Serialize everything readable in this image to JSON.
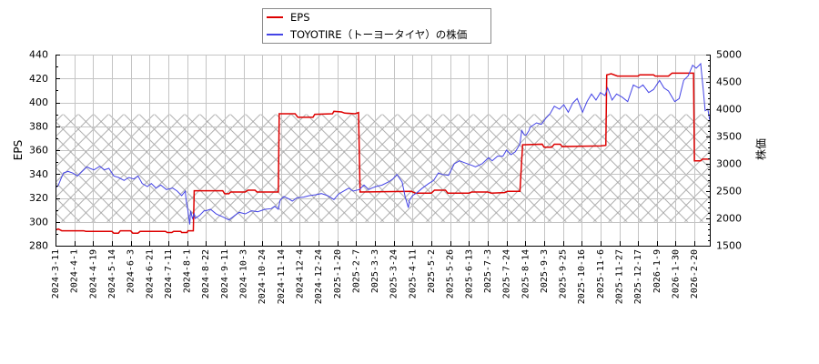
{
  "chart_data": {
    "type": "line",
    "title": "",
    "xlabel": "",
    "ylabel": "EPS",
    "y2label": "株価",
    "ylim": [
      280,
      440
    ],
    "y2lim": [
      1500,
      5000
    ],
    "y_ticks": [
      280,
      300,
      320,
      340,
      360,
      380,
      400,
      420,
      440
    ],
    "y_minor_step": 10,
    "y2_ticks": [
      1500,
      2000,
      2500,
      3000,
      3500,
      4000,
      4500,
      5000
    ],
    "y2_minor_step": 100,
    "x_ticks": [
      "2024-3-11",
      "2024-4-1",
      "2024-4-19",
      "2024-5-14",
      "2024-6-3",
      "2024-6-21",
      "2024-7-11",
      "2024-8-1",
      "2024-8-22",
      "2024-9-11",
      "2024-10-3",
      "2024-10-24",
      "2024-11-14",
      "2024-12-4",
      "2024-12-24",
      "2025-1-20",
      "2025-2-7",
      "2025-3-3",
      "2025-3-24",
      "2025-4-11",
      "2025-5-2",
      "2025-5-26",
      "2025-6-13",
      "2025-7-3",
      "2025-7-24",
      "2025-8-14",
      "2025-9-3",
      "2025-9-25",
      "2025-10-16",
      "2025-11-6",
      "2025-11-27",
      "2025-12-17",
      "2026-1-9",
      "2026-1-30",
      "2026-2-20"
    ],
    "grid": true,
    "legend_position": "top center, above plot",
    "shaded_band": {
      "axis": "left",
      "from": 300,
      "to": 390,
      "hatch": "x"
    },
    "series": [
      {
        "name": "EPS",
        "axis": "left",
        "color": "#dd0000",
        "points": [
          [
            "2024-3-11",
            293
          ],
          [
            "2024-3-14",
            294
          ],
          [
            "2024-3-18",
            292.5
          ],
          [
            "2024-4-10",
            292.5
          ],
          [
            "2024-4-12",
            292
          ],
          [
            "2024-5-14",
            292
          ],
          [
            "2024-5-16",
            290.5
          ],
          [
            "2024-5-21",
            290.5
          ],
          [
            "2024-5-23",
            292.5
          ],
          [
            "2024-6-3",
            292.5
          ],
          [
            "2024-6-5",
            290.5
          ],
          [
            "2024-6-10",
            290.5
          ],
          [
            "2024-6-12",
            292
          ],
          [
            "2024-7-8",
            292
          ],
          [
            "2024-7-10",
            291
          ],
          [
            "2024-7-15",
            291
          ],
          [
            "2024-7-17",
            292
          ],
          [
            "2024-7-25",
            292
          ],
          [
            "2024-7-26",
            291
          ],
          [
            "2024-8-1",
            291
          ],
          [
            "2024-8-2",
            292.5
          ],
          [
            "2024-8-8",
            292.5
          ],
          [
            "2024-8-9",
            326
          ],
          [
            "2024-9-9",
            326
          ],
          [
            "2024-9-11",
            323.5
          ],
          [
            "2024-9-16",
            323.5
          ],
          [
            "2024-9-18",
            325
          ],
          [
            "2024-10-5",
            325
          ],
          [
            "2024-10-8",
            326.5
          ],
          [
            "2024-10-16",
            326.5
          ],
          [
            "2024-10-18",
            325
          ],
          [
            "2024-11-11",
            325
          ],
          [
            "2024-11-12",
            390.5
          ],
          [
            "2024-11-29",
            390.5
          ],
          [
            "2024-12-2",
            387.5
          ],
          [
            "2024-12-18",
            387.5
          ],
          [
            "2024-12-20",
            390
          ],
          [
            "2025-1-13",
            390.5
          ],
          [
            "2025-1-15",
            392.5
          ],
          [
            "2025-1-24",
            392
          ],
          [
            "2025-1-27",
            391
          ],
          [
            "2025-2-6",
            390.5
          ],
          [
            "2025-2-10",
            391.5
          ],
          [
            "2025-2-12",
            325
          ],
          [
            "2025-4-10",
            325.5
          ],
          [
            "2025-4-14",
            324
          ],
          [
            "2025-5-2",
            324
          ],
          [
            "2025-5-6",
            326.5
          ],
          [
            "2025-5-20",
            326.5
          ],
          [
            "2025-5-23",
            324
          ],
          [
            "2025-6-13",
            324
          ],
          [
            "2025-6-16",
            325
          ],
          [
            "2025-7-3",
            325
          ],
          [
            "2025-7-7",
            324
          ],
          [
            "2025-7-22",
            324.5
          ],
          [
            "2025-7-25",
            325.5
          ],
          [
            "2025-8-8",
            325.5
          ],
          [
            "2025-8-11",
            364.5
          ],
          [
            "2025-9-1",
            365
          ],
          [
            "2025-9-3",
            362.5
          ],
          [
            "2025-9-12",
            362.5
          ],
          [
            "2025-9-15",
            365
          ],
          [
            "2025-9-22",
            365
          ],
          [
            "2025-9-24",
            363
          ],
          [
            "2025-11-6",
            363.5
          ],
          [
            "2025-11-12",
            364
          ],
          [
            "2025-11-13",
            423
          ],
          [
            "2025-11-18",
            424
          ],
          [
            "2025-11-25",
            422
          ],
          [
            "2025-12-17",
            422
          ],
          [
            "2025-12-19",
            423
          ],
          [
            "2026-1-5",
            423
          ],
          [
            "2026-1-7",
            422
          ],
          [
            "2026-1-22",
            422
          ],
          [
            "2026-1-26",
            424.5
          ],
          [
            "2026-2-19",
            424.5
          ],
          [
            "2026-2-20",
            351
          ],
          [
            "2026-2-27",
            351
          ],
          [
            "2026-3-1",
            352.5
          ],
          [
            "2026-3-9",
            352.5
          ]
        ]
      },
      {
        "name": "TOYOTIRE（トーヨータイヤ）の株価",
        "axis": "right",
        "color": "#4444e6",
        "points": [
          [
            "2024-3-11",
            2560
          ],
          [
            "2024-3-14",
            2600
          ],
          [
            "2024-3-17",
            2722
          ],
          [
            "2024-3-20",
            2833
          ],
          [
            "2024-3-25",
            2861
          ],
          [
            "2024-3-30",
            2833
          ],
          [
            "2024-4-4",
            2778
          ],
          [
            "2024-4-7",
            2833
          ],
          [
            "2024-4-13",
            2944
          ],
          [
            "2024-4-16",
            2917
          ],
          [
            "2024-4-20",
            2889
          ],
          [
            "2024-4-28",
            2955
          ],
          [
            "2024-5-4",
            2889
          ],
          [
            "2024-5-10",
            2917
          ],
          [
            "2024-5-16",
            2778
          ],
          [
            "2024-5-21",
            2750
          ],
          [
            "2024-5-27",
            2695
          ],
          [
            "2024-6-1",
            2750
          ],
          [
            "2024-6-6",
            2722
          ],
          [
            "2024-6-10",
            2778
          ],
          [
            "2024-6-14",
            2639
          ],
          [
            "2024-6-19",
            2583
          ],
          [
            "2024-6-23",
            2639
          ],
          [
            "2024-6-28",
            2555
          ],
          [
            "2024-7-3",
            2611
          ],
          [
            "2024-7-9",
            2528
          ],
          [
            "2024-7-16",
            2555
          ],
          [
            "2024-7-21",
            2500
          ],
          [
            "2024-7-26",
            2417
          ],
          [
            "2024-7-30",
            2500
          ],
          [
            "2024-7-31",
            2333
          ],
          [
            "2024-8-2",
            2139
          ],
          [
            "2024-8-4",
            1889
          ],
          [
            "2024-8-5",
            2139
          ],
          [
            "2024-8-7",
            2000
          ],
          [
            "2024-8-9",
            2083
          ],
          [
            "2024-8-10",
            2000
          ],
          [
            "2024-8-15",
            2055
          ],
          [
            "2024-8-20",
            2139
          ],
          [
            "2024-8-22",
            2139
          ],
          [
            "2024-8-27",
            2167
          ],
          [
            "2024-9-2",
            2083
          ],
          [
            "2024-9-9",
            2028
          ],
          [
            "2024-9-16",
            1972
          ],
          [
            "2024-9-23",
            2055
          ],
          [
            "2024-9-28",
            2111
          ],
          [
            "2024-10-5",
            2083
          ],
          [
            "2024-10-12",
            2139
          ],
          [
            "2024-10-19",
            2122
          ],
          [
            "2024-10-27",
            2167
          ],
          [
            "2024-11-3",
            2178
          ],
          [
            "2024-11-7",
            2222
          ],
          [
            "2024-11-11",
            2167
          ],
          [
            "2024-11-13",
            2333
          ],
          [
            "2024-11-17",
            2400
          ],
          [
            "2024-11-22",
            2361
          ],
          [
            "2024-11-26",
            2317
          ],
          [
            "2024-12-1",
            2378
          ],
          [
            "2024-12-8",
            2389
          ],
          [
            "2024-12-14",
            2417
          ],
          [
            "2024-12-21",
            2433
          ],
          [
            "2024-12-28",
            2455
          ],
          [
            "2025-1-6",
            2417
          ],
          [
            "2025-1-15",
            2345
          ],
          [
            "2025-1-21",
            2444
          ],
          [
            "2025-1-27",
            2511
          ],
          [
            "2025-1-31",
            2555
          ],
          [
            "2025-2-4",
            2500
          ],
          [
            "2025-2-11",
            2528
          ],
          [
            "2025-2-17",
            2611
          ],
          [
            "2025-2-23",
            2528
          ],
          [
            "2025-2-27",
            2555
          ],
          [
            "2025-3-4",
            2583
          ],
          [
            "2025-3-11",
            2611
          ],
          [
            "2025-3-18",
            2667
          ],
          [
            "2025-3-23",
            2722
          ],
          [
            "2025-3-27",
            2805
          ],
          [
            "2025-4-1",
            2667
          ],
          [
            "2025-4-4",
            2389
          ],
          [
            "2025-4-7",
            2195
          ],
          [
            "2025-4-8",
            2333
          ],
          [
            "2025-4-11",
            2417
          ],
          [
            "2025-4-16",
            2472
          ],
          [
            "2025-4-22",
            2555
          ],
          [
            "2025-4-29",
            2639
          ],
          [
            "2025-5-5",
            2695
          ],
          [
            "2025-5-11",
            2833
          ],
          [
            "2025-5-16",
            2805
          ],
          [
            "2025-5-24",
            2789
          ],
          [
            "2025-5-30",
            3000
          ],
          [
            "2025-6-4",
            3055
          ],
          [
            "2025-6-10",
            3011
          ],
          [
            "2025-6-16",
            2972
          ],
          [
            "2025-6-20",
            2944
          ],
          [
            "2025-6-27",
            3000
          ],
          [
            "2025-7-4",
            3111
          ],
          [
            "2025-7-8",
            3055
          ],
          [
            "2025-7-14",
            3139
          ],
          [
            "2025-7-20",
            3139
          ],
          [
            "2025-7-24",
            3250
          ],
          [
            "2025-7-29",
            3167
          ],
          [
            "2025-8-3",
            3222
          ],
          [
            "2025-8-8",
            3361
          ],
          [
            "2025-8-10",
            3611
          ],
          [
            "2025-8-13",
            3528
          ],
          [
            "2025-8-15",
            3528
          ],
          [
            "2025-8-18",
            3611
          ],
          [
            "2025-8-19",
            3667
          ],
          [
            "2025-8-26",
            3750
          ],
          [
            "2025-8-31",
            3722
          ],
          [
            "2025-9-5",
            3833
          ],
          [
            "2025-9-10",
            3917
          ],
          [
            "2025-9-15",
            4055
          ],
          [
            "2025-9-21",
            4000
          ],
          [
            "2025-9-26",
            4083
          ],
          [
            "2025-10-1",
            3945
          ],
          [
            "2025-10-6",
            4111
          ],
          [
            "2025-10-11",
            4195
          ],
          [
            "2025-10-17",
            3945
          ],
          [
            "2025-10-22",
            4139
          ],
          [
            "2025-10-27",
            4278
          ],
          [
            "2025-11-1",
            4167
          ],
          [
            "2025-11-6",
            4305
          ],
          [
            "2025-11-11",
            4250
          ],
          [
            "2025-11-14",
            4389
          ],
          [
            "2025-11-19",
            4167
          ],
          [
            "2025-11-24",
            4278
          ],
          [
            "2025-11-30",
            4222
          ],
          [
            "2025-12-6",
            4139
          ],
          [
            "2025-12-12",
            4445
          ],
          [
            "2025-12-18",
            4389
          ],
          [
            "2025-12-23",
            4445
          ],
          [
            "2025-12-30",
            4305
          ],
          [
            "2026-1-5",
            4361
          ],
          [
            "2026-1-12",
            4528
          ],
          [
            "2026-1-17",
            4389
          ],
          [
            "2026-1-22",
            4333
          ],
          [
            "2026-1-29",
            4139
          ],
          [
            "2026-2-3",
            4195
          ],
          [
            "2026-2-8",
            4528
          ],
          [
            "2026-2-13",
            4611
          ],
          [
            "2026-2-18",
            4805
          ],
          [
            "2026-2-22",
            4750
          ],
          [
            "2026-2-27",
            4833
          ],
          [
            "2026-3-2",
            4333
          ],
          [
            "2026-3-4",
            3972
          ],
          [
            "2026-3-7",
            4000
          ],
          [
            "2026-3-9",
            3805
          ]
        ]
      }
    ]
  }
}
